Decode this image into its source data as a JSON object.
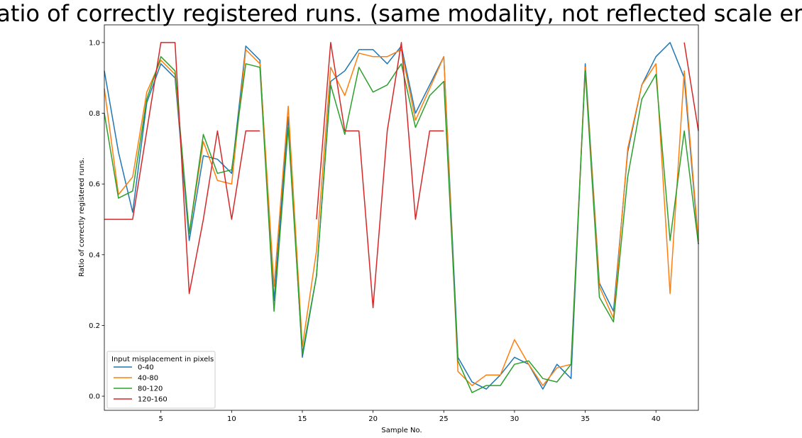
{
  "chart_data": {
    "type": "line",
    "title": "Ratio of correctly registered runs. (same modality, not reflected scale err)",
    "xlabel": "Sample No.",
    "ylabel": "Ratio of correctly registered runs.",
    "xlim": [
      1,
      43
    ],
    "ylim": [
      -0.04,
      1.05
    ],
    "xticks": [
      5,
      10,
      15,
      20,
      25,
      30,
      35,
      40
    ],
    "yticks": [
      0.0,
      0.2,
      0.4,
      0.6,
      0.8,
      1.0
    ],
    "ytick_labels": [
      "0.0",
      "0.2",
      "0.4",
      "0.6",
      "0.8",
      "1.0"
    ],
    "grid": false,
    "legend": {
      "title": "Input misplacement in pixels",
      "placement": "lower-left"
    },
    "x": [
      1,
      2,
      3,
      4,
      5,
      6,
      7,
      8,
      9,
      10,
      11,
      12,
      13,
      14,
      15,
      16,
      17,
      18,
      19,
      20,
      21,
      22,
      23,
      24,
      25,
      26,
      27,
      28,
      29,
      30,
      31,
      32,
      33,
      34,
      35,
      36,
      37,
      38,
      39,
      40,
      41,
      42,
      43
    ],
    "series": [
      {
        "name": "0-40",
        "color": "#1f77b4",
        "values": [
          0.92,
          0.69,
          0.52,
          0.83,
          0.94,
          0.9,
          0.44,
          0.68,
          0.67,
          0.63,
          0.99,
          0.95,
          0.27,
          0.79,
          0.11,
          0.34,
          0.89,
          0.92,
          0.98,
          0.98,
          0.94,
          0.99,
          0.8,
          0.88,
          0.96,
          0.11,
          0.04,
          0.02,
          0.06,
          0.11,
          0.09,
          0.02,
          0.09,
          0.05,
          0.94,
          0.32,
          0.24,
          0.69,
          0.88,
          0.96,
          1.0,
          0.9,
          0.43
        ]
      },
      {
        "name": "40-80",
        "color": "#ff7f0e",
        "values": [
          0.87,
          0.57,
          0.62,
          0.86,
          0.95,
          0.91,
          0.46,
          0.72,
          0.61,
          0.6,
          0.98,
          0.94,
          0.31,
          0.82,
          0.14,
          0.41,
          0.93,
          0.85,
          0.97,
          0.96,
          0.96,
          0.98,
          0.78,
          0.87,
          0.96,
          0.07,
          0.03,
          0.06,
          0.06,
          0.16,
          0.09,
          0.03,
          0.08,
          0.09,
          0.93,
          0.31,
          0.22,
          0.7,
          0.88,
          0.94,
          0.29,
          0.92,
          0.44
        ]
      },
      {
        "name": "80-120",
        "color": "#2ca02c",
        "values": [
          0.8,
          0.56,
          0.58,
          0.84,
          0.96,
          0.92,
          0.46,
          0.74,
          0.63,
          0.64,
          0.94,
          0.93,
          0.24,
          0.76,
          0.12,
          0.34,
          0.88,
          0.74,
          0.93,
          0.86,
          0.88,
          0.94,
          0.76,
          0.85,
          0.89,
          0.1,
          0.01,
          0.03,
          0.03,
          0.09,
          0.1,
          0.05,
          0.04,
          0.09,
          0.92,
          0.28,
          0.21,
          0.62,
          0.84,
          0.91,
          0.44,
          0.75,
          0.43
        ]
      },
      {
        "name": "120-160",
        "color": "#d62728",
        "values": [
          0.5,
          0.5,
          0.5,
          0.75,
          1.0,
          1.0,
          0.29,
          0.5,
          0.75,
          0.5,
          0.75,
          0.75,
          null,
          null,
          null,
          0.5,
          1.0,
          0.75,
          0.75,
          0.25,
          0.75,
          1.0,
          0.5,
          0.75,
          0.75,
          null,
          null,
          null,
          null,
          null,
          null,
          null,
          null,
          null,
          null,
          null,
          null,
          null,
          null,
          null,
          null,
          1.0,
          0.75
        ]
      }
    ]
  }
}
